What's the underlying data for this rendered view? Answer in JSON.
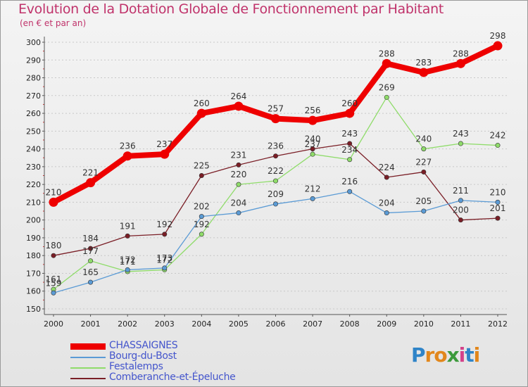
{
  "header": {
    "title": "Evolution de la Dotation Globale de Fonctionnement par Habitant",
    "subtitle": "(en € et par an)"
  },
  "logo": {
    "text": "Proxiti",
    "letters": [
      "P",
      "r",
      "o",
      "x",
      "i",
      "t",
      "i"
    ],
    "colors": [
      "#2f84c8",
      "#e2871c",
      "#e2871c",
      "#3c9a3c",
      "#d4428a",
      "#2f84c8",
      "#e2871c"
    ]
  },
  "chart_data": {
    "type": "line",
    "title": "Evolution de la Dotation Globale de Fonctionnement par Habitant",
    "subtitle": "(en € et par an)",
    "xlabel": "",
    "ylabel": "",
    "ylim": [
      150,
      300
    ],
    "yticks": [
      "150",
      "160",
      "170",
      "180",
      "190",
      "200",
      "210",
      "220",
      "230",
      "240",
      "250",
      "260",
      "270",
      "280",
      "290",
      "300"
    ],
    "categories": [
      "2000",
      "2001",
      "2002",
      "2003",
      "2004",
      "2005",
      "2006",
      "2007",
      "2008",
      "2009",
      "2010",
      "2011",
      "2012"
    ],
    "grid": "horizontal dashed",
    "legend_position": "bottom-left",
    "series": [
      {
        "name": "Comberanche-et-Épeluche",
        "color": "#7a1e26",
        "values": [
          180,
          184,
          191,
          192,
          225,
          231,
          236,
          240,
          243,
          224,
          227,
          200,
          201
        ],
        "labels": [
          "180",
          "184",
          "191",
          "192",
          "225",
          "231",
          "236",
          "240",
          "243",
          "224",
          "227",
          "200",
          "201"
        ]
      },
      {
        "name": "Festalemps",
        "color": "#8fdc6a",
        "values": [
          161,
          177,
          171,
          172,
          192,
          220,
          222,
          237,
          234,
          269,
          240,
          243,
          242
        ],
        "labels": [
          "161",
          "177",
          "171",
          "172",
          "192",
          "220",
          "222",
          "237",
          "234",
          "269",
          "240",
          "243",
          "242"
        ]
      },
      {
        "name": "Bourg-du-Bost",
        "color": "#5b9bd5",
        "values": [
          159,
          165,
          172,
          173,
          202,
          204,
          209,
          212,
          216,
          204,
          205,
          211,
          210
        ],
        "labels": [
          "159",
          "165",
          "172",
          "173",
          "202",
          "204",
          "209",
          "212",
          "216",
          "204",
          "205",
          "211",
          "210"
        ]
      },
      {
        "name": "CHASSAIGNES",
        "color": "#ee0000",
        "values": [
          210,
          221,
          236,
          237,
          260,
          264,
          257,
          256,
          260,
          288,
          283,
          288,
          298
        ],
        "labels": [
          "210",
          "221",
          "236",
          "237",
          "260",
          "264",
          "257",
          "256",
          "260",
          "288",
          "283",
          "288",
          "298"
        ]
      }
    ]
  },
  "legend": {
    "items": [
      {
        "label": "CHASSAIGNES",
        "color": "#ee0000"
      },
      {
        "label": "Bourg-du-Bost",
        "color": "#5b9bd5"
      },
      {
        "label": "Festalemps",
        "color": "#8fdc6a"
      },
      {
        "label": "Comberanche-et-Épeluche",
        "color": "#7a1e26"
      }
    ]
  }
}
